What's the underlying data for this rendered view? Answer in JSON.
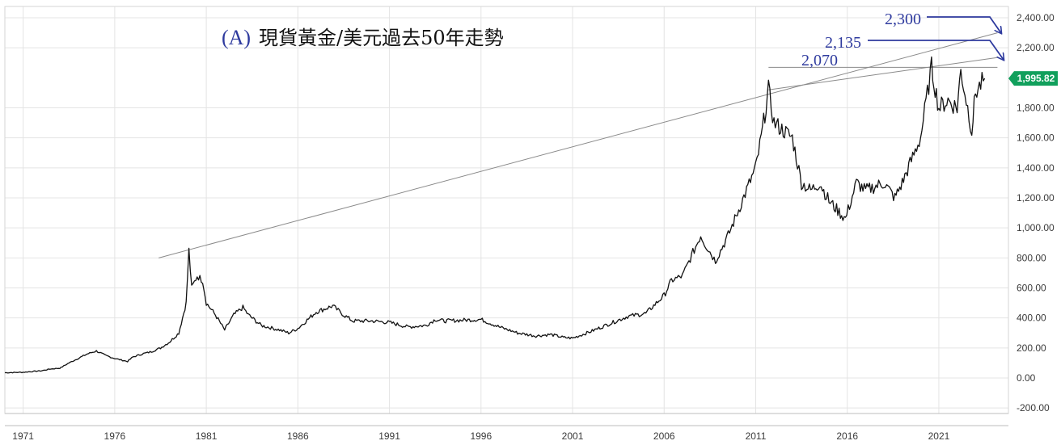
{
  "chart_data": {
    "type": "line",
    "title_prefix": "(A)",
    "title": "現貨黃金/美元過去50年走勢",
    "xlabel": "",
    "ylabel": "",
    "x_ticks": [
      "1971",
      "1976",
      "1981",
      "1986",
      "1991",
      "1996",
      "2001",
      "2006",
      "2011",
      "2016",
      "2021"
    ],
    "y_ticks": [
      "-200.00",
      "0.00",
      "200.00",
      "400.00",
      "600.00",
      "800.00",
      "1,000.00",
      "1,200.00",
      "1,400.00",
      "1,600.00",
      "1,800.00",
      "2,200.00",
      "2,400.00"
    ],
    "xlim": [
      1970,
      2024.8
    ],
    "ylim": [
      -250,
      2500
    ],
    "grid": true,
    "colors": {
      "price_line": "#111111",
      "trend_line": "#8a8a8a",
      "annotation": "#2e3a9e",
      "last_price_badge": "#11a05c"
    },
    "series": [
      {
        "x": [
          1970.0,
          1971.0,
          1972.0,
          1972.5,
          1973.0,
          1973.5,
          1974.0,
          1974.5,
          1975.0,
          1975.5,
          1976.0,
          1976.7,
          1977.0,
          1977.5,
          1978.0,
          1978.5,
          1979.0,
          1979.5,
          1979.9,
          1980.05,
          1980.2,
          1980.5,
          1980.8,
          1981.0,
          1981.5,
          1982.0,
          1982.5,
          1983.0,
          1983.3,
          1984.0,
          1985.0,
          1985.5,
          1986.0,
          1987.0,
          1987.9,
          1988.5,
          1989.0,
          1990.0,
          1991.0,
          1992.0,
          1993.0,
          1993.5,
          1994.0,
          1995.0,
          1996.0,
          1997.0,
          1998.0,
          1999.0,
          1999.8,
          2000.5,
          2001.0,
          2002.0,
          2003.0,
          2004.0,
          2005.0,
          2006.0,
          2006.4,
          2007.0,
          2008.0,
          2008.2,
          2008.8,
          2009.5,
          2010.0,
          2010.5,
          2011.0,
          2011.3,
          2011.7,
          2012.0,
          2012.5,
          2013.0,
          2013.5,
          2014.0,
          2014.5,
          2015.0,
          2015.9,
          2016.5,
          2017.0,
          2018.0,
          2018.6,
          2019.0,
          2019.5,
          2020.0,
          2020.6,
          2021.0,
          2021.5,
          2022.0,
          2022.2,
          2022.8,
          2023.0,
          2023.5
        ],
        "values": [
          35,
          38,
          48,
          60,
          65,
          100,
          130,
          160,
          180,
          150,
          130,
          110,
          140,
          160,
          175,
          200,
          240,
          300,
          500,
          850,
          600,
          680,
          650,
          500,
          420,
          320,
          420,
          470,
          420,
          350,
          320,
          300,
          330,
          440,
          480,
          420,
          380,
          380,
          370,
          340,
          350,
          390,
          380,
          385,
          390,
          340,
          300,
          280,
          290,
          270,
          265,
          310,
          360,
          410,
          430,
          550,
          650,
          680,
          950,
          900,
          780,
          950,
          1100,
          1250,
          1400,
          1600,
          1920,
          1700,
          1650,
          1600,
          1300,
          1250,
          1300,
          1180,
          1060,
          1300,
          1250,
          1300,
          1200,
          1300,
          1450,
          1600,
          2070,
          1800,
          1850,
          1800,
          2050,
          1650,
          1900,
          1995.82
        ]
      }
    ],
    "trend_lines": [
      {
        "x": [
          1978.4,
          2024.2
        ],
        "values": [
          800,
          2300
        ]
      },
      {
        "x": [
          2011.7,
          2024.2
        ],
        "values": [
          1920,
          2135
        ]
      },
      {
        "x": [
          2011.7,
          2024.2
        ],
        "values": [
          2070,
          2070
        ]
      }
    ],
    "annotations": [
      {
        "label": "2,300",
        "value": 2300
      },
      {
        "label": "2,135",
        "value": 2135
      },
      {
        "label": "2,070",
        "value": 2070
      }
    ],
    "last_price": {
      "label": "1,995.82",
      "value": 1995.82
    }
  }
}
